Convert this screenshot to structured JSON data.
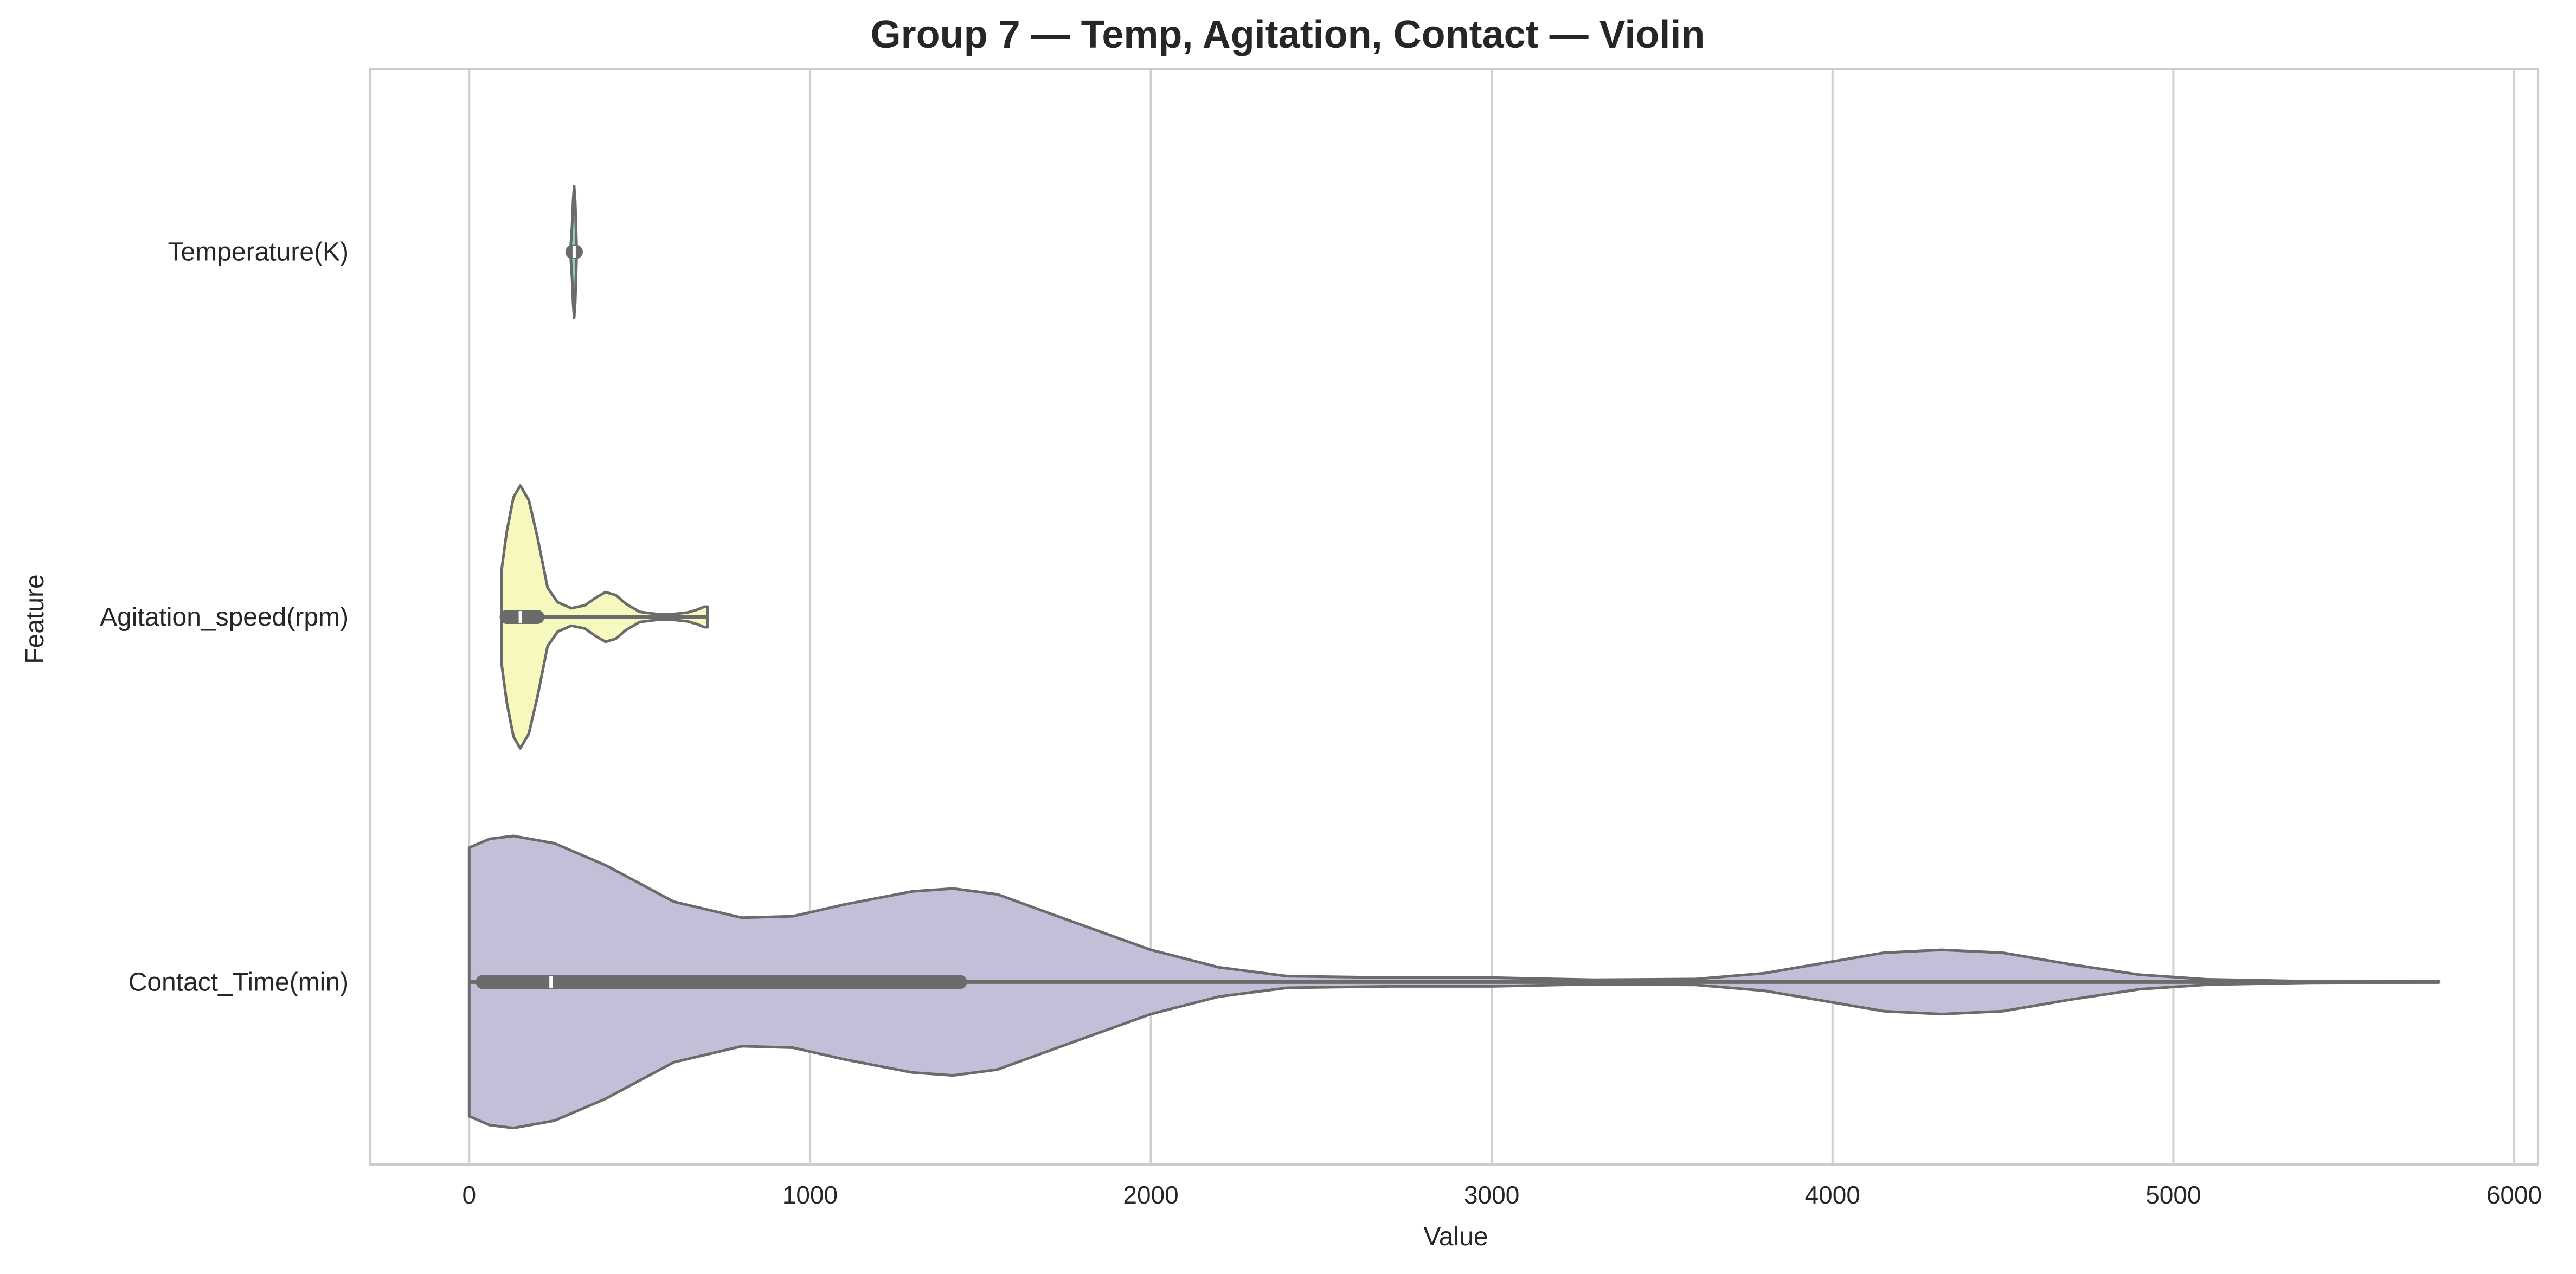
{
  "chart_data": {
    "type": "violin",
    "orientation": "horizontal",
    "title": "Group 7 — Temp, Agitation, Contact — Violin",
    "xlabel": "Value",
    "ylabel": "Feature",
    "xlim": [
      -290,
      6070
    ],
    "xticks": [
      0,
      1000,
      2000,
      3000,
      4000,
      5000,
      6000
    ],
    "xtick_labels": [
      "0",
      "1000",
      "2000",
      "3000",
      "4000",
      "5000",
      "6000"
    ],
    "grid": "vertical",
    "legend": "none",
    "colors": {
      "line": "#6b6b6b",
      "grid": "#d0d0d0",
      "spine": "#cccccc",
      "text": "#262626"
    },
    "series": [
      {
        "category": "Temperature(K)",
        "fill": "#8dd3c7",
        "min": 298,
        "max": 313,
        "q1": 303,
        "median": 308,
        "q3": 313,
        "density": [
          [
            298,
            0.04
          ],
          [
            302,
            0.18
          ],
          [
            305,
            0.35
          ],
          [
            308,
            0.45
          ],
          [
            311,
            0.35
          ],
          [
            313,
            0.2
          ],
          [
            315,
            0.04
          ]
        ]
      },
      {
        "category": "Agitation_speed(rpm)",
        "fill": "#f7f8bd",
        "min": 100,
        "max": 700,
        "q1": 110,
        "median": 150,
        "q3": 200,
        "density": [
          [
            95,
            0.32
          ],
          [
            110,
            0.58
          ],
          [
            130,
            0.82
          ],
          [
            150,
            0.9
          ],
          [
            175,
            0.8
          ],
          [
            200,
            0.55
          ],
          [
            230,
            0.2
          ],
          [
            260,
            0.1
          ],
          [
            300,
            0.06
          ],
          [
            340,
            0.08
          ],
          [
            370,
            0.13
          ],
          [
            400,
            0.17
          ],
          [
            430,
            0.15
          ],
          [
            460,
            0.09
          ],
          [
            500,
            0.035
          ],
          [
            550,
            0.02
          ],
          [
            600,
            0.02
          ],
          [
            640,
            0.03
          ],
          [
            670,
            0.05
          ],
          [
            690,
            0.07
          ],
          [
            700,
            0.07
          ]
        ]
      },
      {
        "category": "Contact_Time(min)",
        "fill": "#c3bfd9",
        "min": 0,
        "max": 5780,
        "q1": 40,
        "median": 240,
        "q3": 1440,
        "density": [
          [
            0,
            0.92
          ],
          [
            60,
            0.98
          ],
          [
            130,
            1.0
          ],
          [
            250,
            0.95
          ],
          [
            400,
            0.8
          ],
          [
            600,
            0.55
          ],
          [
            800,
            0.44
          ],
          [
            950,
            0.45
          ],
          [
            1100,
            0.53
          ],
          [
            1300,
            0.62
          ],
          [
            1420,
            0.64
          ],
          [
            1550,
            0.6
          ],
          [
            1750,
            0.43
          ],
          [
            2000,
            0.22
          ],
          [
            2200,
            0.1
          ],
          [
            2400,
            0.04
          ],
          [
            2700,
            0.03
          ],
          [
            3000,
            0.03
          ],
          [
            3300,
            0.015
          ],
          [
            3600,
            0.02
          ],
          [
            3800,
            0.06
          ],
          [
            4000,
            0.14
          ],
          [
            4150,
            0.2
          ],
          [
            4320,
            0.22
          ],
          [
            4500,
            0.2
          ],
          [
            4700,
            0.12
          ],
          [
            4900,
            0.05
          ],
          [
            5100,
            0.018
          ],
          [
            5400,
            0.005
          ],
          [
            5780,
            0.003
          ]
        ]
      }
    ]
  }
}
